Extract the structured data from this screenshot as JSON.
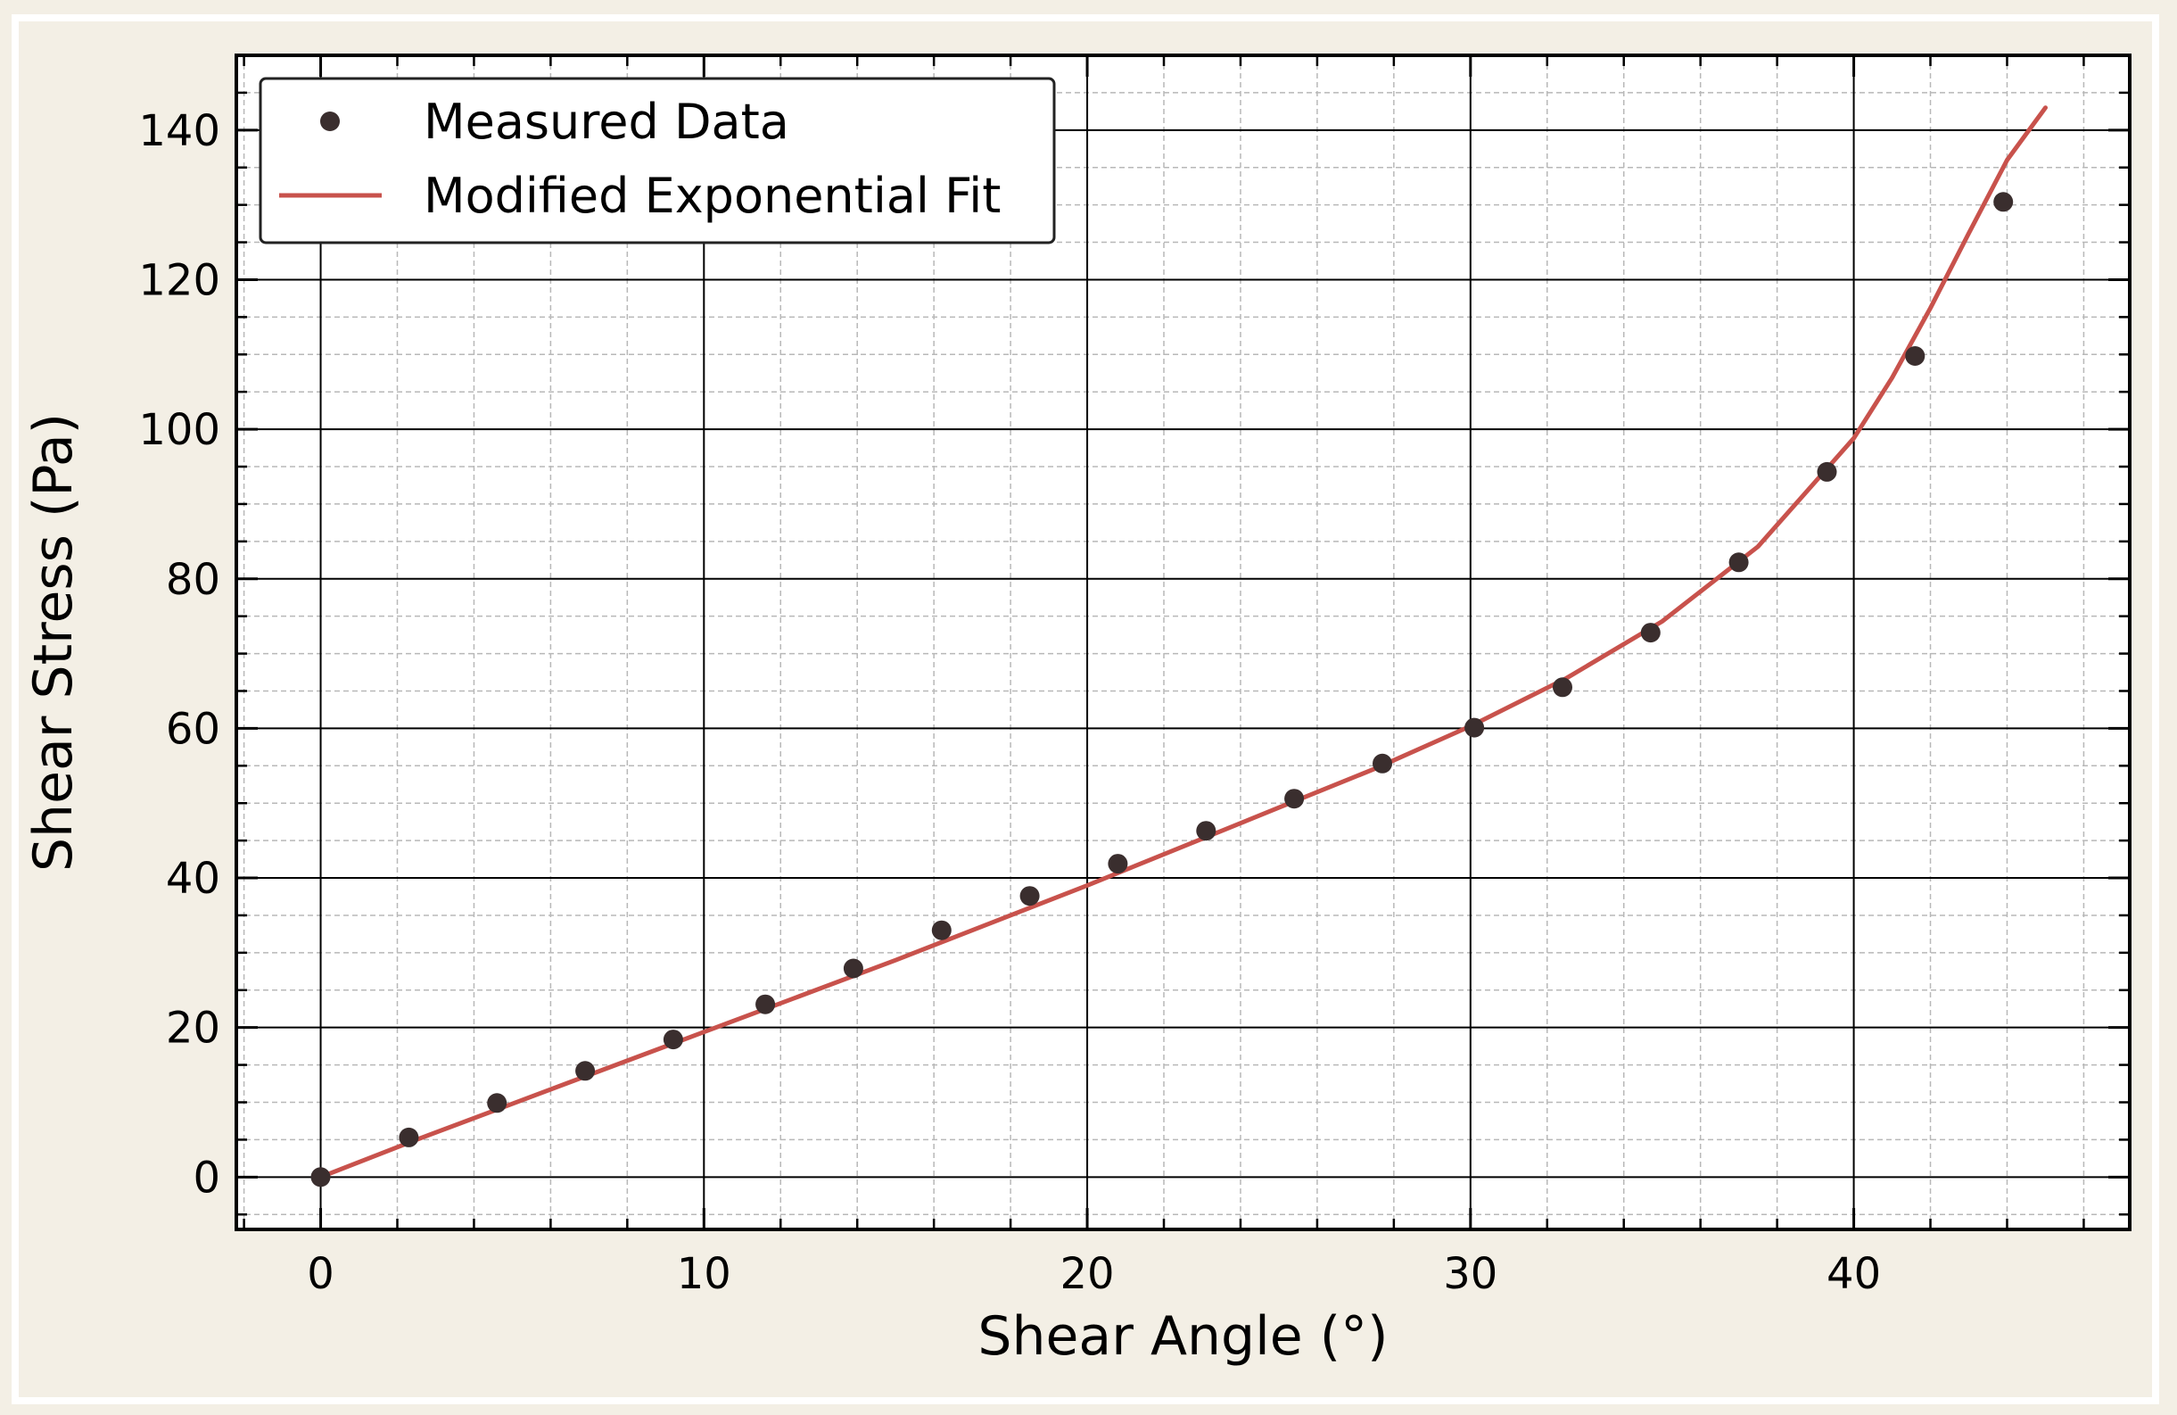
{
  "colors": {
    "figure_background": "#f3efe5",
    "plot_background": "#ffffff",
    "measured_marker": "#3a2e2e",
    "fit_line": "#c8524c",
    "grid_major": "#000000",
    "grid_minor": "#b8b8b8"
  },
  "chart_data": {
    "type": "scatter",
    "title": "",
    "xlabel": "Shear Angle (°)",
    "ylabel": "Shear Stress (Pa)",
    "xlim": [
      -2.2,
      47.2
    ],
    "ylim": [
      -7,
      150
    ],
    "xticks": [
      0,
      10,
      20,
      30,
      40
    ],
    "yticks": [
      0,
      20,
      40,
      60,
      80,
      100,
      120,
      140
    ],
    "xtick_labels": [
      "0",
      "10",
      "20",
      "30",
      "40"
    ],
    "ytick_labels": [
      "0",
      "20",
      "40",
      "60",
      "80",
      "100",
      "120",
      "140"
    ],
    "grid": true,
    "minor_grid": true,
    "legend_position": "upper-left",
    "series": [
      {
        "name": "Measured Data",
        "kind": "scatter",
        "color": "#3a2e2e",
        "x": [
          0.0,
          2.3,
          4.6,
          6.9,
          9.2,
          11.6,
          13.9,
          16.2,
          18.5,
          20.8,
          23.1,
          25.4,
          27.7,
          30.1,
          32.4,
          34.7,
          37.0,
          39.3,
          41.6,
          43.9
        ],
        "y": [
          0.0,
          5.3,
          9.9,
          14.2,
          18.4,
          23.1,
          27.9,
          33.0,
          37.6,
          41.9,
          46.3,
          50.6,
          55.3,
          60.1,
          65.5,
          72.8,
          82.2,
          94.3,
          109.8,
          130.4
        ]
      },
      {
        "name": "Modified Exponential Fit",
        "kind": "line",
        "color": "#c8524c",
        "x": [
          0,
          2.5,
          5,
          7.5,
          10,
          12.5,
          15,
          17.5,
          20,
          22.5,
          25,
          27.5,
          30,
          32.5,
          35,
          37.5,
          40,
          41,
          42,
          43,
          44,
          45
        ],
        "y": [
          0,
          5.0,
          9.8,
          14.6,
          19.4,
          24.2,
          29.0,
          34.0,
          39.0,
          44.2,
          49.4,
          54.6,
          60.3,
          66.7,
          74.3,
          84.3,
          98.8,
          106.9,
          116.2,
          126.2,
          136.0,
          143.0
        ]
      }
    ]
  }
}
